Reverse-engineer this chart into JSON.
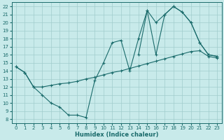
{
  "xlabel": "Humidex (Indice chaleur)",
  "ylabel": "",
  "xlim": [
    -0.5,
    23.5
  ],
  "ylim": [
    7.5,
    22.5
  ],
  "xticks": [
    0,
    1,
    2,
    3,
    4,
    5,
    6,
    7,
    8,
    9,
    10,
    11,
    12,
    13,
    14,
    15,
    16,
    17,
    18,
    19,
    20,
    21,
    22,
    23
  ],
  "yticks": [
    8,
    9,
    10,
    11,
    12,
    13,
    14,
    15,
    16,
    17,
    18,
    19,
    20,
    21,
    22
  ],
  "background_color": "#c8eaea",
  "grid_color": "#a0cccc",
  "line_color": "#1a6b6b",
  "line1_x": [
    0,
    1,
    2,
    3,
    4,
    5,
    6,
    7,
    8,
    9,
    10,
    11,
    12,
    13,
    14,
    15,
    16,
    17,
    18,
    19,
    20,
    21,
    22,
    23
  ],
  "line1_y": [
    14.5,
    13.8,
    12.0,
    11.0,
    10.0,
    9.5,
    8.5,
    8.5,
    8.2,
    12.8,
    15.0,
    17.5,
    17.8,
    14.0,
    18.0,
    21.5,
    16.0,
    21.0,
    22.0,
    21.3,
    20.0,
    17.5,
    16.0,
    15.8
  ],
  "line2_x": [
    0,
    1,
    2,
    3,
    4,
    5,
    6,
    7,
    8,
    9,
    10,
    11,
    12,
    13,
    14,
    15,
    16,
    17,
    18,
    19,
    20,
    21,
    22,
    23
  ],
  "line2_y": [
    14.5,
    13.8,
    12.0,
    12.0,
    12.2,
    12.4,
    12.5,
    12.7,
    13.0,
    13.2,
    13.5,
    13.8,
    14.0,
    14.3,
    14.6,
    14.9,
    15.2,
    15.5,
    15.8,
    16.1,
    16.4,
    16.5,
    15.8,
    15.6
  ],
  "line3_x": [
    14,
    15,
    16,
    17,
    18,
    19,
    20,
    21,
    22,
    23
  ],
  "line3_y": [
    16.0,
    21.5,
    20.0,
    21.0,
    22.0,
    21.3,
    20.0,
    17.5,
    16.0,
    15.8
  ]
}
